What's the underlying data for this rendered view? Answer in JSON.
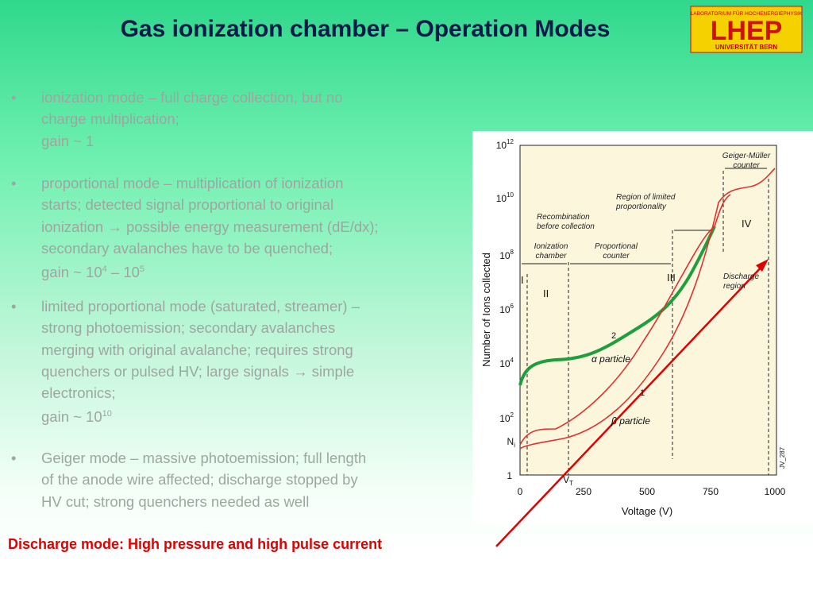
{
  "header": {
    "title": "Gas ionization chamber – Operation Modes",
    "logo": {
      "top": "LABORATORIUM FÜR HOCHENERGIEPHYSIK",
      "main": "LHEP",
      "bottom": "UNIVERSITÄT BERN"
    }
  },
  "bullets": [
    {
      "marker": "•",
      "lines": [
        [
          "ionization mode – full charge collection, but no"
        ],
        [
          "charge multiplication;"
        ],
        [
          "gain ~ 1"
        ]
      ]
    },
    {
      "marker": "•",
      "lines": [
        [
          "proportional mode – multiplication of ionization"
        ],
        [
          "starts; detected signal proportional to original"
        ],
        [
          "ionization → possible energy measurement (dE/dx);"
        ],
        [
          "secondary avalanches have to be quenched;"
        ],
        [
          "gain ~ 10",
          {
            "sup": "4"
          },
          " – 10",
          {
            "sup": "5"
          }
        ]
      ]
    },
    {
      "marker": "•",
      "lines": [
        [
          "limited proportional mode  (saturated, streamer) –"
        ],
        [
          "strong photoemission; secondary avalanches"
        ],
        [
          "merging with original avalanche; requires strong"
        ],
        [
          "quenchers or pulsed HV; large signals → simple"
        ],
        [
          "electronics;"
        ],
        [
          "gain ~ 10",
          {
            "sup": "10"
          }
        ]
      ]
    },
    {
      "marker": "•",
      "lines": [
        [
          "Geiger mode – massive photoemission; full length"
        ],
        [
          "of the anode wire affected; discharge stopped by"
        ],
        [
          "HV cut; strong quenchers needed as well"
        ]
      ]
    }
  ],
  "note": "Discharge mode: High pressure and high pulse current",
  "figure": {
    "y_axis_label": "Number of Ions collected",
    "x_axis_label": "Voltage (V)",
    "yticks": [
      {
        "base": "10",
        "exp": "12"
      },
      {
        "base": "10",
        "exp": "10"
      },
      {
        "base": "10",
        "exp": "8"
      },
      {
        "base": "10",
        "exp": "6"
      },
      {
        "base": "10",
        "exp": "4"
      },
      {
        "base": "10",
        "exp": "2"
      }
    ],
    "y_one": "1",
    "ni": {
      "base": "N",
      "sub": "i"
    },
    "vt": {
      "base": "V",
      "sub": "T"
    },
    "xticks": [
      "0",
      "250",
      "500",
      "750",
      "1000"
    ],
    "regions": [
      "I",
      "II",
      "III",
      "IV"
    ],
    "annotations": {
      "gm": [
        "Geiger-Müller",
        "counter"
      ],
      "limited": [
        "Region of limited",
        "proportionality"
      ],
      "recomb": [
        "Recombination",
        "before collection"
      ],
      "ion": [
        "Ionization",
        "chamber"
      ],
      "prop": [
        "Proportional",
        "counter"
      ],
      "discharge": [
        "Discharge",
        "region"
      ]
    },
    "alpha": "α particle",
    "beta": "β particle",
    "curve2": "2",
    "curve1": "1",
    "code": "JV_287"
  }
}
